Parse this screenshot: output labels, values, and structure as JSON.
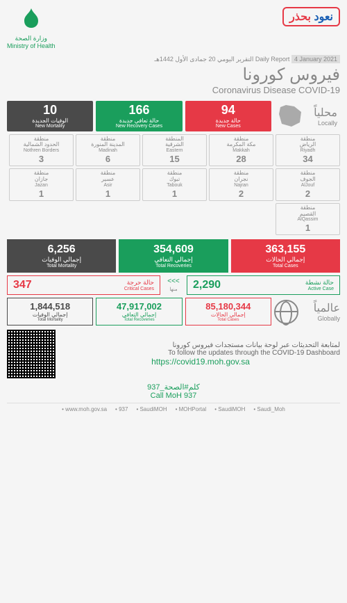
{
  "header": {
    "ministry_ar": "وزارة الصحة",
    "ministry_en": "Ministry of Health",
    "campaign_w1": "نعود",
    "campaign_w2": "بحذر"
  },
  "date": {
    "ar": "التقرير اليومي 20 جمادى الأول 1442هـ",
    "en": "Daily Report",
    "date": "4 January 2021"
  },
  "title": {
    "ar": "فيروس كورونا",
    "en": "Coronavirus Disease COVID-19"
  },
  "locally": {
    "ar": "محلياً",
    "en": "Locally"
  },
  "stats": {
    "mortality": {
      "num": "10",
      "ar": "الوفيات الجديدة",
      "en": "New Mortality",
      "color": "#4a4a4a"
    },
    "recovery": {
      "num": "166",
      "ar": "حالة تعافي جديدة",
      "en": "New Recovery Cases",
      "color": "#1a9e5c"
    },
    "newcases": {
      "num": "94",
      "ar": "حالة جديدة",
      "en": "New Cases",
      "color": "#e63946"
    }
  },
  "regions": [
    {
      "ar1": "منطقة",
      "ar2": "الرياض",
      "en": "Riyadh",
      "n": "34"
    },
    {
      "ar1": "منطقة",
      "ar2": "مكة المكرمة",
      "en": "Makkah",
      "n": "28"
    },
    {
      "ar1": "المنطقة",
      "ar2": "الشرقية",
      "en": "Eastern",
      "n": "15"
    },
    {
      "ar1": "منطقة",
      "ar2": "المدينة المنورة",
      "en": "Madinah",
      "n": "6"
    },
    {
      "ar1": "منطقة",
      "ar2": "الحدود الشمالية",
      "en": "Nothren Borders",
      "n": "3"
    },
    {
      "ar1": "منطقة",
      "ar2": "الجوف",
      "en": "AlJouf",
      "n": "2"
    },
    {
      "ar1": "منطقة",
      "ar2": "نجران",
      "en": "Najran",
      "n": "2"
    },
    {
      "ar1": "منطقة",
      "ar2": "تبوك",
      "en": "Tabouk",
      "n": "1"
    },
    {
      "ar1": "منطقة",
      "ar2": "عسير",
      "en": "Asir",
      "n": "1"
    },
    {
      "ar1": "منطقة",
      "ar2": "جازان",
      "en": "Jazan",
      "n": "1"
    },
    {
      "ar1": "منطقة",
      "ar2": "القصيم",
      "en": "AlQassim",
      "n": "1"
    }
  ],
  "totals": {
    "mortality": {
      "num": "6,256",
      "ar": "إجمالي الوفيات",
      "en": "Total Mortality"
    },
    "recovery": {
      "num": "354,609",
      "ar": "إجمالي التعافي",
      "en": "Total Recoveries"
    },
    "cases": {
      "num": "363,155",
      "ar": "إجمالي الحالات",
      "en": "Total Cases"
    }
  },
  "sub": {
    "critical": {
      "num": "347",
      "ar": "حالة حرجة",
      "en": "Critical Cases"
    },
    "active": {
      "num": "2,290",
      "ar": "حالة نشطة",
      "en": "Active Case"
    },
    "minha": "منها"
  },
  "globally": {
    "ar": "عالمياً",
    "en": "Globally"
  },
  "global": {
    "mortality": {
      "num": "1,844,518",
      "ar": "إجمالي الوفيات",
      "en": "Total Mortality"
    },
    "recovery": {
      "num": "47,917,002",
      "ar": "إجمالي التعافي",
      "en": "Total Recoveries"
    },
    "cases": {
      "num": "85,180,344",
      "ar": "إجمالي الحالات",
      "en": "Total Cases"
    }
  },
  "dashboard": {
    "ar": "لمتابعة التحديثات عبر لوحة بيانات مستجدات فيروس كورونا",
    "en": "To follow the updates through the COVID-19 Dashboard",
    "link": "https://covid19.moh.gov.sa"
  },
  "call": {
    "ar": "كلم#الصحة_937",
    "en": "Call MoH 937"
  },
  "footer": [
    "www.moh.gov.sa",
    "937",
    "SaudiMOH",
    "MOHPortal",
    "SaudiMOH",
    "Saudi_Moh"
  ]
}
